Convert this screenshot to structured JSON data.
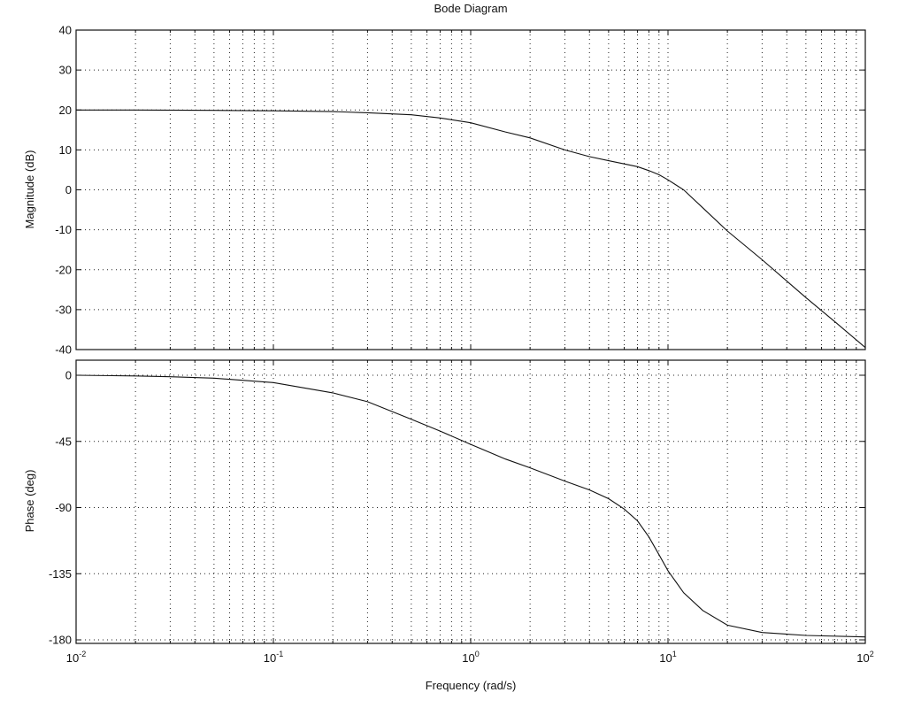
{
  "chart_data": {
    "type": "line",
    "title": "Bode Diagram",
    "xlabel": "Frequency  (rad/s)",
    "x_scale": "log",
    "xlim": [
      0.01,
      100
    ],
    "x_ticks": [
      {
        "value": 0.01,
        "base": "10",
        "exp": "-2"
      },
      {
        "value": 0.1,
        "base": "10",
        "exp": "-1"
      },
      {
        "value": 1,
        "base": "10",
        "exp": "0"
      },
      {
        "value": 10,
        "base": "10",
        "exp": "1"
      },
      {
        "value": 100,
        "base": "10",
        "exp": "2"
      }
    ],
    "grid": true,
    "panels": [
      {
        "ylabel": "Magnitude (dB)",
        "ylim": [
          -40,
          40
        ],
        "y_ticks": [
          "40",
          "30",
          "20",
          "10",
          "0",
          "-10",
          "-20",
          "-30",
          "-40"
        ],
        "series": [
          {
            "x": [
              0.01,
              0.02,
              0.05,
              0.1,
              0.2,
              0.3,
              0.5,
              0.7,
              1,
              1.5,
              2,
              3,
              4,
              5,
              6,
              7,
              8,
              9,
              10,
              12,
              15,
              20,
              30,
              50,
              70,
              100
            ],
            "y": [
              20,
              20,
              19.9,
              19.8,
              19.6,
              19.3,
              18.8,
              18,
              16.8,
              14.5,
              13,
              10,
              8.3,
              7.3,
              6.5,
              5.8,
              4.8,
              3.8,
              2.5,
              0,
              -4.5,
              -10.3,
              -17.5,
              -27,
              -33,
              -39.5
            ]
          }
        ]
      },
      {
        "ylabel": "Phase (deg)",
        "ylim": [
          -180,
          0
        ],
        "y_ticks": [
          "0",
          "-45",
          "-90",
          "-135",
          "-180"
        ],
        "series": [
          {
            "x": [
              0.01,
              0.02,
              0.03,
              0.05,
              0.1,
              0.2,
              0.3,
              0.5,
              0.7,
              1,
              1.5,
              2,
              3,
              4,
              5,
              6,
              7,
              8,
              9,
              10,
              12,
              15,
              20,
              30,
              50,
              100
            ],
            "y": [
              0,
              -0.5,
              -1,
              -2,
              -5,
              -12,
              -18,
              -30,
              -38,
              -47,
              -57,
              -63,
              -72,
              -78,
              -84,
              -91,
              -99,
              -110,
              -122,
              -133,
              -148,
              -160,
              -170,
              -175,
              -177,
              -178
            ]
          }
        ]
      }
    ]
  }
}
